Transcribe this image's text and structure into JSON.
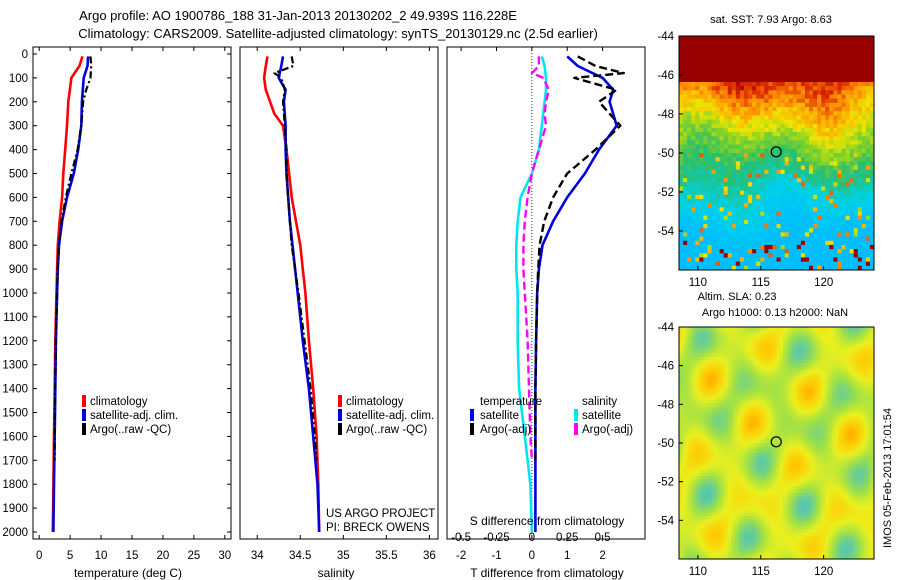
{
  "header": {
    "line1": "Argo profile: AO 1900786_188 31-Jan-2013 20130202_2 49.939S 116.228E",
    "line2": "Climatology: CARS2009. Satellite-adjusted climatology: synTS_20130129.nc (2.5d earlier)"
  },
  "credits": {
    "project": "US ARGO PROJECT",
    "pi": "PI: BRECK OWENS",
    "imos": "IMOS 05-Feb-2013 17:01:54"
  },
  "colors": {
    "climatology": "#ff0000",
    "satellite": "#0000dd",
    "argo": "#000000",
    "satellite_s": "#00e5ee",
    "argo_s": "#ff00ff"
  },
  "chart_data": [
    {
      "type": "line",
      "panel": "temperature",
      "xlabel": "temperature (deg C)",
      "ylabel": "",
      "xlim": [
        -1,
        31
      ],
      "ylim": [
        2050,
        0
      ],
      "xticks": [
        "0",
        "5",
        "10",
        "15",
        "20",
        "25",
        "30"
      ],
      "yticks": [
        "0",
        "100",
        "200",
        "300",
        "400",
        "500",
        "600",
        "700",
        "800",
        "900",
        "1000",
        "1100",
        "1200",
        "1300",
        "1400",
        "1500",
        "1600",
        "1700",
        "1800",
        "1900",
        "2000"
      ],
      "legend": [
        "climatology",
        "satellite-adj. clim.",
        "Argo(..raw -QC)"
      ],
      "series": [
        {
          "name": "climatology",
          "depth": [
            10,
            50,
            100,
            200,
            300,
            400,
            500,
            600,
            700,
            800,
            900,
            1000,
            1200,
            1400,
            1600,
            1800,
            2000
          ],
          "values": [
            7.0,
            6.5,
            5.2,
            4.7,
            4.5,
            4.2,
            3.9,
            3.7,
            3.3,
            3.0,
            2.9,
            2.8,
            2.6,
            2.5,
            2.4,
            2.3,
            2.2
          ]
        },
        {
          "name": "satellite-adj. clim.",
          "depth": [
            10,
            50,
            100,
            200,
            300,
            400,
            500,
            600,
            700,
            800,
            900,
            1000,
            1200,
            1400,
            1600,
            1800,
            2000
          ],
          "values": [
            7.9,
            7.8,
            7.2,
            6.9,
            6.8,
            6.3,
            5.6,
            4.5,
            3.7,
            3.2,
            3.0,
            2.9,
            2.7,
            2.6,
            2.5,
            2.4,
            2.3
          ]
        },
        {
          "name": "Argo(..raw -QC)",
          "depth": [
            10,
            50,
            100,
            150,
            200,
            300,
            400,
            500,
            600,
            700,
            800,
            900,
            1000,
            1200,
            1400,
            1600,
            1700
          ],
          "values": [
            8.3,
            8.4,
            8.3,
            7.6,
            7.1,
            6.8,
            6.2,
            5.2,
            4.3,
            3.6,
            3.2,
            3.0,
            2.9,
            2.7,
            2.6,
            2.5,
            2.5
          ]
        }
      ]
    },
    {
      "type": "line",
      "panel": "salinity",
      "xlabel": "salinity",
      "ylabel": "",
      "xlim": [
        33.8,
        36.1
      ],
      "ylim": [
        2050,
        0
      ],
      "xticks": [
        "34",
        "34.5",
        "35",
        "35.5",
        "36"
      ],
      "yticks": [],
      "legend": [
        "climatology",
        "satellite-adj. clim.",
        "Argo(..raw -QC)"
      ],
      "series": [
        {
          "name": "climatology",
          "depth": [
            10,
            50,
            100,
            150,
            200,
            250,
            300,
            400,
            500,
            600,
            700,
            800,
            900,
            1000,
            1200,
            1400,
            1600,
            1800,
            2000
          ],
          "values": [
            34.12,
            34.1,
            34.08,
            34.1,
            34.15,
            34.2,
            34.3,
            34.34,
            34.37,
            34.4,
            34.45,
            34.5,
            34.53,
            34.56,
            34.6,
            34.65,
            34.69,
            34.71,
            34.72
          ]
        },
        {
          "name": "satellite-adj. clim.",
          "depth": [
            10,
            50,
            100,
            150,
            200,
            300,
            400,
            500,
            600,
            700,
            800,
            900,
            1000,
            1200,
            1400,
            1600,
            1800,
            2000
          ],
          "values": [
            34.3,
            34.28,
            34.25,
            34.33,
            34.31,
            34.33,
            34.33,
            34.34,
            34.36,
            34.38,
            34.41,
            34.44,
            34.47,
            34.53,
            34.6,
            34.65,
            34.7,
            34.72
          ]
        },
        {
          "name": "Argo(..raw -QC)",
          "depth": [
            10,
            50,
            80,
            100,
            150,
            200,
            300,
            400,
            500,
            600,
            700,
            800,
            900,
            1000,
            1200,
            1400,
            1600,
            1700
          ],
          "values": [
            34.4,
            34.42,
            34.2,
            34.28,
            34.32,
            34.3,
            34.32,
            34.34,
            34.34,
            34.36,
            34.38,
            34.4,
            34.44,
            34.48,
            34.55,
            34.62,
            34.67,
            34.69
          ]
        }
      ]
    },
    {
      "type": "line",
      "panel": "differences",
      "xlabel": "T difference from climatology",
      "xlabel2": "S difference from climatology",
      "xlim": [
        -2.4,
        3.2
      ],
      "ylim": [
        2050,
        0
      ],
      "xticks": [
        "-2",
        "-1",
        "0",
        "1",
        "2"
      ],
      "xticks2": [
        "-0.5",
        "-0.25",
        "0",
        "0.25",
        "0.5"
      ],
      "legend_left_title": "temperature",
      "legend_right_title": "salinity",
      "legend": [
        "satellite",
        "Argo(-adj)",
        "satellite",
        "Argo(-adj)"
      ],
      "series": [
        {
          "name": "satellite",
          "depth": [
            10,
            50,
            100,
            150,
            200,
            300,
            400,
            500,
            600,
            700,
            800,
            900,
            1000,
            1200,
            1400,
            1600,
            1800,
            2000
          ],
          "values": [
            1.0,
            1.3,
            2.0,
            2.3,
            2.2,
            2.4,
            1.9,
            1.5,
            1.0,
            0.6,
            0.3,
            0.2,
            0.15,
            0.12,
            0.1,
            0.1,
            0.1,
            0.1
          ]
        },
        {
          "name": "Argo(-adj)",
          "depth": [
            10,
            50,
            80,
            100,
            150,
            200,
            300,
            400,
            500,
            600,
            700,
            800,
            900,
            1000,
            1200,
            1400,
            1600,
            1700
          ],
          "values": [
            1.3,
            1.8,
            2.6,
            1.2,
            2.4,
            1.9,
            2.5,
            1.8,
            1.0,
            0.6,
            0.35,
            0.22,
            0.18,
            0.15,
            0.12,
            0.1,
            0.1,
            0.1
          ]
        },
        {
          "name": "satellite",
          "depth": [
            10,
            50,
            100,
            150,
            200,
            300,
            400,
            500,
            600,
            700,
            800,
            900,
            1000,
            1200,
            1400,
            1600,
            1800,
            2000
          ],
          "values": [
            0.07,
            0.09,
            0.1,
            0.1,
            0.09,
            0.07,
            0.05,
            0.0,
            -0.08,
            -0.1,
            -0.11,
            -0.11,
            -0.1,
            -0.1,
            -0.09,
            -0.05,
            -0.01,
            0.0
          ]
        },
        {
          "name": "Argo(-adj)",
          "depth": [
            10,
            50,
            80,
            100,
            150,
            200,
            250,
            300,
            400,
            500,
            600,
            700,
            800,
            900,
            1000,
            1200,
            1400,
            1600,
            1700
          ],
          "values": [
            0.05,
            0.05,
            0.0,
            0.08,
            0.12,
            0.1,
            0.09,
            0.1,
            0.05,
            0.0,
            -0.03,
            -0.05,
            -0.06,
            -0.06,
            -0.05,
            -0.03,
            -0.02,
            -0.01,
            0.0
          ]
        }
      ]
    },
    {
      "type": "heatmap",
      "panel": "sst-map",
      "title": "sat. SST: 7.93 Argo: 8.63",
      "xticks": [
        "110",
        "115",
        "120"
      ],
      "yticks": [
        "-44",
        "-46",
        "-48",
        "-50",
        "-52",
        "-54"
      ],
      "xlim": [
        108.5,
        124
      ],
      "ylim": [
        -56,
        -44
      ],
      "marker": {
        "lon": 116.228,
        "lat": -49.939
      }
    },
    {
      "type": "heatmap",
      "panel": "sla-map",
      "title": "Altim. SLA: 0.23",
      "subtitle": "Argo h1000: 0.13 h2000: NaN",
      "xticks": [
        "110",
        "115",
        "120"
      ],
      "yticks": [
        "-44",
        "-46",
        "-48",
        "-50",
        "-52",
        "-54"
      ],
      "xlim": [
        108.5,
        124
      ],
      "ylim": [
        -56,
        -44
      ],
      "marker": {
        "lon": 116.228,
        "lat": -49.939
      }
    }
  ]
}
